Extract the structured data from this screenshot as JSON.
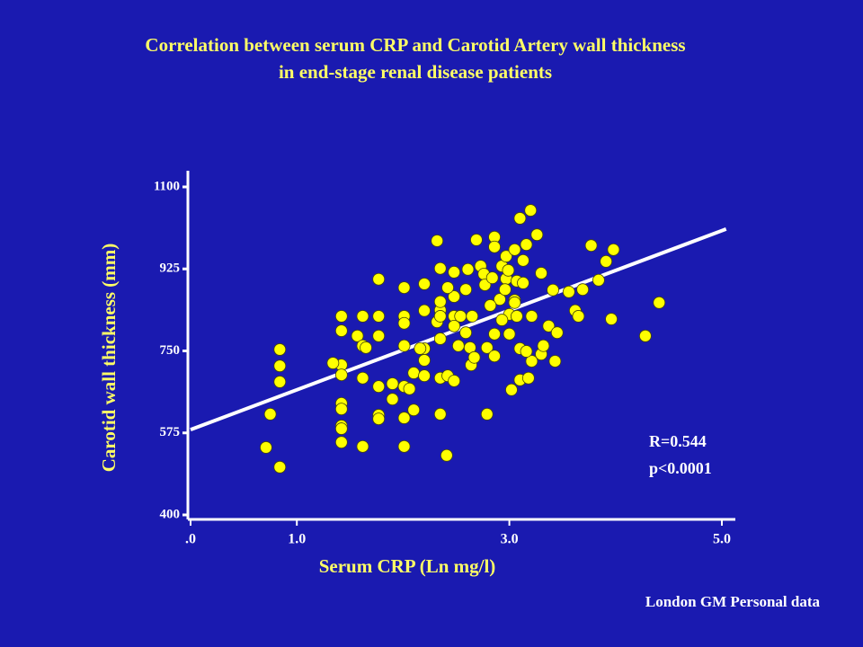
{
  "chart_data": {
    "type": "scatter",
    "title": [
      "Correlation between serum CRP and Carotid Artery wall thickness",
      "in end-stage renal disease patients"
    ],
    "xlabel": "Serum CRP (Ln mg/l)",
    "ylabel": "Carotid wall thickness (mm)",
    "color": "#ffff00",
    "line_color": "#ffffff",
    "x": [
      0.71,
      0.84,
      0.75,
      0.84,
      0.84,
      0.84,
      1.42,
      1.42,
      1.42,
      1.42,
      1.42,
      1.42,
      1.42,
      1.42,
      1.42,
      1.34,
      1.62,
      1.77,
      1.77,
      1.57,
      1.62,
      1.65,
      1.62,
      1.77,
      1.77,
      1.77,
      1.62,
      1.77,
      1.9,
      1.9,
      2.01,
      2.01,
      2.01,
      2.01,
      2.01,
      2.01,
      2.01,
      2.06,
      2.1,
      2.1,
      2.2,
      2.2,
      2.2,
      2.2,
      2.2,
      2.16,
      2.32,
      2.32,
      2.35,
      2.35,
      2.35,
      2.35,
      2.35,
      2.35,
      2.41,
      2.42,
      2.48,
      2.35,
      2.48,
      2.48,
      2.48,
      2.48,
      2.52,
      2.42,
      2.54,
      2.59,
      2.59,
      2.61,
      2.63,
      2.64,
      2.65,
      2.69,
      2.73,
      2.76,
      2.77,
      2.79,
      2.79,
      2.84,
      2.86,
      2.86,
      2.86,
      2.86,
      2.91,
      2.93,
      2.97,
      2.97,
      2.99,
      3.0,
      3.0,
      3.02,
      3.05,
      3.05,
      3.07,
      3.07,
      3.1,
      3.1,
      3.1,
      3.13,
      3.13,
      3.16,
      3.18,
      3.2,
      3.21,
      3.21,
      3.26,
      3.3,
      3.3,
      3.32,
      3.37,
      3.41,
      3.43,
      3.45,
      3.56,
      3.62,
      3.65,
      3.69,
      3.77,
      3.84,
      3.91,
      3.96,
      3.98,
      4.28,
      4.41,
      2.93,
      3.05,
      3.16,
      2.67,
      2.82,
      2.96
    ],
    "y": [
      544,
      502,
      615,
      684,
      718,
      753,
      824,
      793,
      720,
      699,
      638,
      626,
      590,
      584,
      555,
      724,
      824,
      824,
      782,
      782,
      761,
      757,
      692,
      674,
      613,
      605,
      546,
      903,
      680,
      647,
      885,
      824,
      809,
      761,
      674,
      607,
      546,
      669,
      703,
      624,
      893,
      836,
      755,
      730,
      697,
      755,
      985,
      812,
      837,
      824,
      855,
      776,
      692,
      615,
      527,
      697,
      686,
      926,
      918,
      866,
      824,
      803,
      761,
      885,
      824,
      881,
      789,
      924,
      757,
      720,
      824,
      987,
      931,
      914,
      891,
      757,
      615,
      906,
      993,
      972,
      786,
      739,
      860,
      931,
      952,
      904,
      922,
      828,
      786,
      667,
      966,
      858,
      899,
      824,
      755,
      688,
      1033,
      943,
      895,
      977,
      692,
      1050,
      824,
      728,
      998,
      916,
      743,
      761,
      803,
      880,
      728,
      789,
      876,
      836,
      824,
      881,
      975,
      901,
      941,
      818,
      966,
      782,
      853,
      816,
      853,
      749,
      736,
      847,
      881
    ],
    "fit_line": {
      "x": [
        0,
        5.04
      ],
      "y": [
        582,
        1010
      ]
    },
    "xlim": [
      0,
      5
    ],
    "xticks": [
      {
        "value": 0,
        "label": ".0"
      },
      {
        "value": 1,
        "label": "1.0"
      },
      {
        "value": 3,
        "label": "3.0"
      },
      {
        "value": 5,
        "label": "5.0"
      }
    ],
    "ylim": [
      400,
      1100
    ],
    "yticks": [
      400,
      575,
      750,
      925,
      1100
    ],
    "annotations": [
      "R=0.544",
      "p<0.0001"
    ],
    "source": "London GM Personal data"
  }
}
